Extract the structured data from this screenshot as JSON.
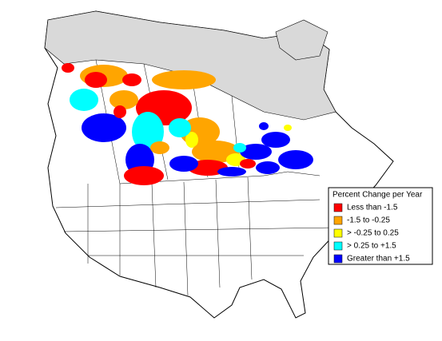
{
  "legend": {
    "title": "Percent Change per Year",
    "items": [
      {
        "label": "Less than -1.5",
        "color": "#ff0000"
      },
      {
        "label": "-1.5 to -0.25",
        "color": "#ffa500"
      },
      {
        "label": "> -0.25 to 0.25",
        "color": "#ffff00"
      },
      {
        "label": "> 0.25 to +1.5",
        "color": "#00ffff"
      },
      {
        "label": "Greater than +1.5",
        "color": "#0000ff"
      }
    ]
  }
}
